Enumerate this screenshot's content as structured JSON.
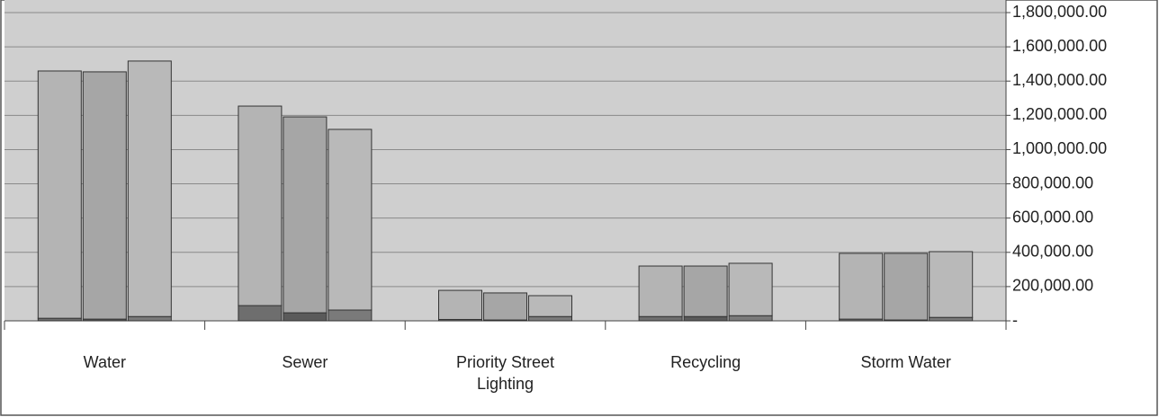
{
  "chart_data": {
    "type": "stacked-bar-groups",
    "categories": [
      "Water",
      "Sewer",
      "Priority Street Lighting",
      "Recycling",
      "Storm Water"
    ],
    "bars": [
      {
        "segments": [
          {
            "color": "#6e6e6e",
            "values": [
              15000,
              89000,
              8000,
              25000,
              10000
            ]
          },
          {
            "color": "#b4b4b4",
            "values": [
              1444000,
              1165000,
              170000,
              295000,
              384000
            ]
          }
        ]
      },
      {
        "segments": [
          {
            "color": "#5a5a5a",
            "values": [
              10000,
              47000,
              5000,
              25000,
              5000
            ]
          },
          {
            "color": "#a6a6a6",
            "values": [
              1444000,
              1144000,
              158000,
              295000,
              389000
            ]
          }
        ]
      },
      {
        "segments": [
          {
            "color": "#7a7a7a",
            "values": [
              25000,
              63000,
              25000,
              30000,
              20000
            ]
          },
          {
            "color": "#b9b9b9",
            "values": [
              1492000,
              1055000,
              122000,
              306000,
              384000
            ]
          }
        ]
      }
    ],
    "ylim": [
      0,
      1800000
    ],
    "yticks": [
      {
        "value": 0,
        "label": "-"
      },
      {
        "value": 200000,
        "label": "200,000.00"
      },
      {
        "value": 400000,
        "label": "400,000.00"
      },
      {
        "value": 600000,
        "label": "600,000.00"
      },
      {
        "value": 800000,
        "label": "800,000.00"
      },
      {
        "value": 1000000,
        "label": "1,000,000.00"
      },
      {
        "value": 1200000,
        "label": "1,200,000.00"
      },
      {
        "value": 1400000,
        "label": "1,400,000.00"
      },
      {
        "value": 1600000,
        "label": "1,600,000.00"
      },
      {
        "value": 1800000,
        "label": "1,800,000.00"
      }
    ],
    "grid": true
  }
}
